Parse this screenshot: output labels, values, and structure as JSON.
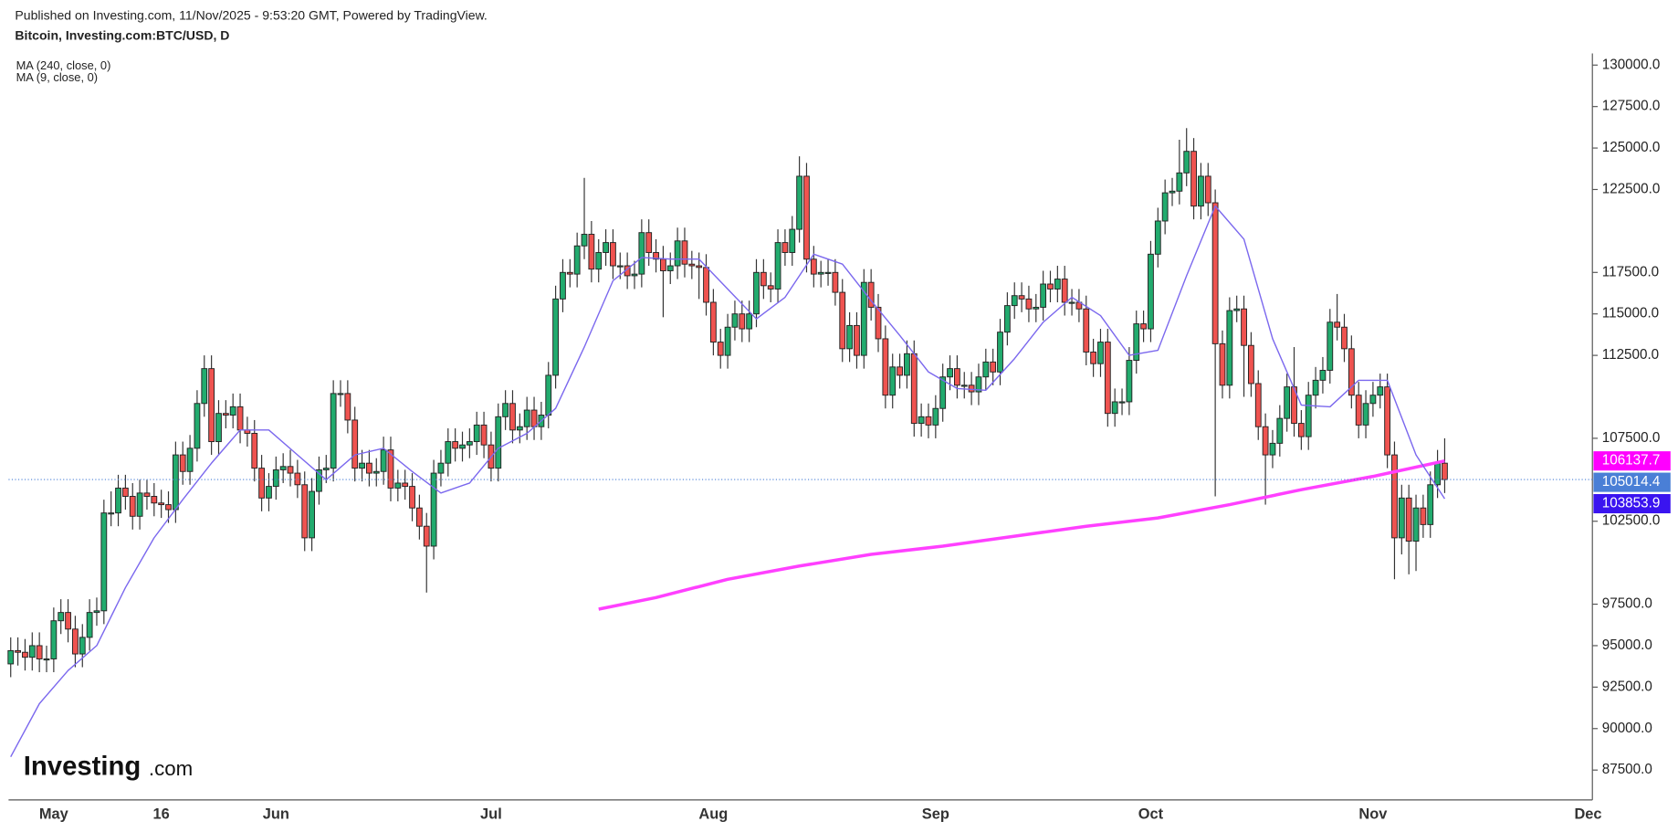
{
  "header": {
    "published": "Published on Investing.com, 11/Nov/2025 - 9:53:20 GMT, Powered by TradingView.",
    "symbol": "Bitcoin, Investing.com:BTC/USD, D"
  },
  "logo": {
    "brand": "Investing",
    "suffix": ".com"
  },
  "chart_data": {
    "type": "candlestick",
    "up_color": "#22ab6e",
    "down_color": "#ef5350",
    "open": [
      93900,
      94700,
      94600,
      94300,
      95000,
      94200,
      94200,
      96500,
      97000,
      96000,
      94500,
      95500,
      97000,
      97100,
      103000,
      103000,
      104500,
      104000,
      102800,
      104200,
      104000,
      103600,
      103500,
      103200,
      106500,
      105500,
      106900,
      109600,
      111700,
      107300,
      109000,
      108900,
      109400,
      108000,
      107800,
      105700,
      103900,
      104600,
      105600,
      105800,
      105400,
      104700,
      101500,
      104300,
      105600,
      105700,
      110200,
      110200,
      108600,
      105700,
      106000,
      105400,
      105500,
      106800,
      104500,
      104800,
      104600,
      103300,
      102200,
      101000,
      105400,
      106000,
      107300,
      106900,
      107100,
      107300,
      108300,
      107100,
      105700,
      108800,
      109600,
      108000,
      108200,
      109200,
      108200,
      108900,
      111300,
      115900,
      117500,
      117400,
      119100,
      119800,
      117700,
      118700,
      119300,
      117900,
      117900,
      117300,
      117400,
      119900,
      118700,
      118300,
      117600,
      117900,
      119400,
      118000,
      117900,
      117800,
      115700,
      113300,
      112500,
      114200,
      115000,
      114100,
      115000,
      117500,
      116700,
      116500,
      119300,
      118700,
      120100,
      123300,
      118300,
      117400,
      117500,
      117500,
      116300,
      112900,
      114300,
      112500,
      116900,
      115400,
      113500,
      110100,
      111800,
      111300,
      112600,
      108400,
      108800,
      108300,
      109300,
      111200,
      111700,
      110700,
      110700,
      110300,
      111200,
      112100,
      111500,
      113900,
      115500,
      116100,
      115900,
      115300,
      115400,
      116800,
      116500,
      117100,
      115700,
      115700,
      115300,
      112700,
      112000,
      113300,
      109000,
      109700,
      109700,
      112200,
      114400,
      114100,
      118600,
      120600,
      122300,
      122400,
      123500,
      124800,
      121500,
      123300,
      121700,
      113200,
      110700,
      115200,
      115300,
      113100,
      110800,
      108200,
      106500,
      107200,
      108700,
      110600,
      108400,
      107600,
      110100,
      111000,
      111600,
      114500,
      114200,
      112900,
      110100,
      108300,
      109600,
      110100,
      110600,
      106500,
      101500,
      103900,
      101300,
      103300,
      102300,
      104700,
      106000
    ],
    "high": [
      95500,
      95500,
      95400,
      95800,
      95800,
      95000,
      97300,
      97800,
      97800,
      96800,
      96300,
      97800,
      97900,
      103800,
      104300,
      105300,
      105300,
      104800,
      105000,
      105000,
      104800,
      104400,
      104300,
      107300,
      107300,
      107700,
      110400,
      112500,
      112500,
      109800,
      109800,
      110200,
      110200,
      108800,
      108600,
      106500,
      105400,
      106400,
      106600,
      106800,
      106200,
      105500,
      105100,
      106400,
      106500,
      111000,
      111000,
      111000,
      109400,
      106800,
      106800,
      106300,
      107600,
      107600,
      105600,
      105600,
      105400,
      104100,
      103000,
      106200,
      106800,
      108100,
      108100,
      107900,
      108100,
      109100,
      109100,
      107900,
      109600,
      110400,
      110400,
      109000,
      110000,
      110000,
      109700,
      112100,
      116700,
      118300,
      118300,
      119900,
      123200,
      120600,
      119500,
      120100,
      120100,
      118700,
      118700,
      118200,
      120700,
      120700,
      119500,
      119100,
      118700,
      120200,
      120200,
      118800,
      118700,
      118600,
      116500,
      114100,
      115000,
      115800,
      115800,
      115800,
      118300,
      118300,
      117500,
      120100,
      120100,
      120900,
      124500,
      124100,
      119100,
      118200,
      118300,
      118300,
      117100,
      115100,
      115100,
      117700,
      117700,
      116200,
      114300,
      112600,
      112600,
      113400,
      113400,
      109600,
      109600,
      110100,
      112000,
      112500,
      112500,
      111500,
      111500,
      112000,
      112900,
      112900,
      114700,
      116300,
      116900,
      116900,
      116700,
      116200,
      117600,
      117600,
      117900,
      117900,
      116500,
      116500,
      116100,
      113500,
      114100,
      114100,
      110500,
      110500,
      113000,
      115200,
      115200,
      119400,
      121400,
      123100,
      123200,
      125500,
      126200,
      125600,
      124100,
      124100,
      122500,
      114000,
      116000,
      116100,
      116100,
      113900,
      111600,
      109000,
      108000,
      109500,
      111400,
      113000,
      109200,
      110900,
      111800,
      112400,
      115300,
      116200,
      115000,
      113700,
      110900,
      110400,
      110900,
      111400,
      111400,
      107300,
      104700,
      104700,
      104100,
      104100,
      105500,
      106800,
      107500
    ],
    "low": [
      93100,
      93800,
      93500,
      93500,
      93400,
      93400,
      93400,
      95700,
      95200,
      93700,
      93700,
      94700,
      96200,
      96300,
      102200,
      102200,
      103200,
      102000,
      102000,
      103200,
      102800,
      102700,
      102400,
      102400,
      104700,
      104700,
      106100,
      108800,
      106500,
      106500,
      108100,
      108100,
      107200,
      107000,
      104900,
      103100,
      103100,
      103800,
      104800,
      104600,
      103900,
      100700,
      100700,
      103500,
      104800,
      104900,
      109400,
      107800,
      104900,
      104900,
      104600,
      104600,
      104700,
      103700,
      103700,
      103800,
      102500,
      101400,
      98200,
      100200,
      104600,
      105200,
      106100,
      106100,
      106300,
      106500,
      106300,
      104900,
      104900,
      108000,
      107200,
      107200,
      107400,
      107400,
      107400,
      108100,
      110500,
      115100,
      116600,
      116600,
      118300,
      116900,
      116900,
      117900,
      117100,
      117100,
      116500,
      116500,
      116600,
      117900,
      117500,
      114800,
      116800,
      117100,
      117200,
      117100,
      115900,
      114900,
      112500,
      111700,
      111700,
      113400,
      113300,
      113300,
      114200,
      115900,
      115700,
      115700,
      117900,
      117900,
      119300,
      117500,
      116600,
      116600,
      116700,
      115500,
      112100,
      112100,
      111700,
      111700,
      114600,
      112700,
      109300,
      109300,
      110500,
      110500,
      107600,
      107600,
      107500,
      107500,
      108500,
      110400,
      109900,
      109900,
      109500,
      109500,
      110400,
      110700,
      110700,
      113100,
      114700,
      115100,
      114500,
      114500,
      114600,
      115700,
      115700,
      114900,
      114900,
      114500,
      111900,
      111200,
      111200,
      108200,
      108200,
      108900,
      108900,
      111400,
      113300,
      113300,
      117800,
      119800,
      121500,
      121600,
      122700,
      120700,
      120700,
      120900,
      104000,
      109900,
      109900,
      114500,
      110000,
      110000,
      107400,
      103500,
      105700,
      106400,
      107900,
      107600,
      106800,
      106800,
      109300,
      110200,
      110800,
      113400,
      112100,
      109300,
      107500,
      107500,
      108800,
      109300,
      105700,
      99000,
      100500,
      99300,
      99500,
      101500,
      101500,
      103900,
      104200
    ],
    "close": [
      94700,
      94600,
      94300,
      95000,
      94200,
      94200,
      96500,
      97000,
      96000,
      94500,
      95500,
      97000,
      97100,
      103000,
      103000,
      104500,
      104000,
      102800,
      104200,
      104000,
      103600,
      103500,
      103200,
      106500,
      105500,
      106900,
      109600,
      111700,
      107300,
      109000,
      108900,
      109400,
      108000,
      107800,
      105700,
      103900,
      104600,
      105600,
      105800,
      105400,
      104700,
      101500,
      104300,
      105600,
      105700,
      110200,
      110200,
      108600,
      105700,
      106000,
      105400,
      105500,
      106800,
      104500,
      104800,
      104600,
      103300,
      102200,
      101000,
      105400,
      106000,
      107300,
      106900,
      107100,
      107300,
      108300,
      107100,
      105700,
      108800,
      109600,
      108000,
      108200,
      109200,
      108200,
      108900,
      111300,
      115900,
      117500,
      117400,
      119100,
      119800,
      117700,
      118700,
      119300,
      117900,
      117900,
      117300,
      117400,
      119900,
      118700,
      118300,
      117600,
      117900,
      119400,
      118000,
      117900,
      117800,
      115700,
      113300,
      112500,
      114200,
      115000,
      114100,
      115000,
      117500,
      116700,
      116500,
      119300,
      118700,
      120100,
      123300,
      118300,
      117400,
      117500,
      117500,
      116300,
      112900,
      114300,
      112500,
      116900,
      115400,
      113500,
      110100,
      111800,
      111300,
      112600,
      108400,
      108800,
      108300,
      109300,
      111200,
      111700,
      110700,
      110700,
      110300,
      111200,
      112100,
      111500,
      113900,
      115500,
      116100,
      115900,
      115300,
      115400,
      116800,
      116500,
      117100,
      115700,
      115700,
      115300,
      112700,
      112000,
      113300,
      109000,
      109700,
      109700,
      112200,
      114400,
      114100,
      118600,
      120600,
      122300,
      122400,
      123500,
      124800,
      121500,
      123300,
      121700,
      113200,
      110700,
      115200,
      115300,
      113100,
      110800,
      108200,
      106500,
      107200,
      108700,
      110600,
      108400,
      107600,
      110100,
      111000,
      111600,
      114500,
      114200,
      112900,
      110100,
      108300,
      109600,
      110100,
      110600,
      106500,
      101500,
      103900,
      101300,
      103300,
      102300,
      104700,
      106000,
      105014.4
    ],
    "lines": [
      {
        "name": "MA (240, close, 0)",
        "color": "#ff40ff",
        "x": [
          82,
          90,
          100,
          110,
          120,
          130,
          140,
          150,
          160,
          170,
          180,
          190,
          200
        ],
        "values": [
          97200,
          97900,
          99000,
          99800,
          100500,
          101000,
          101600,
          102200,
          102700,
          103500,
          104400,
          105200,
          106137.7
        ]
      },
      {
        "name": "MA (9, close, 0)",
        "color": "#7b68ee",
        "x": [
          0,
          4,
          8,
          12,
          16,
          20,
          24,
          28,
          32,
          36,
          40,
          44,
          48,
          52,
          56,
          60,
          64,
          68,
          72,
          76,
          80,
          84,
          88,
          92,
          96,
          100,
          104,
          108,
          112,
          116,
          120,
          124,
          128,
          132,
          136,
          140,
          144,
          148,
          152,
          156,
          160,
          164,
          168,
          172,
          176,
          180,
          184,
          188,
          192,
          196,
          200
        ],
        "values": [
          88300,
          91500,
          93500,
          95000,
          98500,
          101500,
          103800,
          106000,
          108000,
          108000,
          106500,
          105000,
          106500,
          106900,
          105500,
          104200,
          104800,
          106900,
          107800,
          109300,
          113000,
          117000,
          118400,
          118300,
          118300,
          116500,
          114700,
          116000,
          118600,
          118000,
          115800,
          113700,
          111500,
          110500,
          110400,
          112300,
          114500,
          116000,
          114900,
          112500,
          112800,
          117300,
          121500,
          119500,
          113500,
          109500,
          109400,
          111000,
          111000,
          106500,
          103853.9
        ]
      }
    ],
    "price_tags": [
      {
        "value": 106137.7,
        "label": "106137.7",
        "color": "#ff00ff"
      },
      {
        "value": 105014.4,
        "label": "105014.4",
        "color": "#4a7fd6",
        "dotted": true
      },
      {
        "value": 103853.9,
        "label": "103853.9",
        "color": "#3a14f0"
      }
    ],
    "xlim": [
      -0.3,
      220.6
    ],
    "xticks": [
      {
        "value": 6,
        "label": "May"
      },
      {
        "value": 21,
        "label": "16"
      },
      {
        "value": 37,
        "label": "Jun"
      },
      {
        "value": 67,
        "label": "Jul"
      },
      {
        "value": 98,
        "label": "Aug"
      },
      {
        "value": 129,
        "label": "Sep"
      },
      {
        "value": 159,
        "label": "Oct"
      },
      {
        "value": 190,
        "label": "Nov"
      },
      {
        "value": 220,
        "label": "Dec"
      }
    ],
    "ylim": [
      85700,
      130700
    ],
    "yticks": [
      {
        "value": 87500,
        "label": "87500.0"
      },
      {
        "value": 90000,
        "label": "90000.0"
      },
      {
        "value": 92500,
        "label": "92500.0"
      },
      {
        "value": 95000,
        "label": "95000.0"
      },
      {
        "value": 97500,
        "label": "97500.0"
      },
      {
        "value": 102500,
        "label": "102500.0"
      },
      {
        "value": 107500,
        "label": "107500.0"
      },
      {
        "value": 112500,
        "label": "112500.0"
      },
      {
        "value": 115000,
        "label": "115000.0"
      },
      {
        "value": 117500,
        "label": "117500.0"
      },
      {
        "value": 122500,
        "label": "122500.0"
      },
      {
        "value": 125000,
        "label": "125000.0"
      },
      {
        "value": 127500,
        "label": "127500.0"
      },
      {
        "value": 130000,
        "label": "130000.0"
      }
    ]
  }
}
